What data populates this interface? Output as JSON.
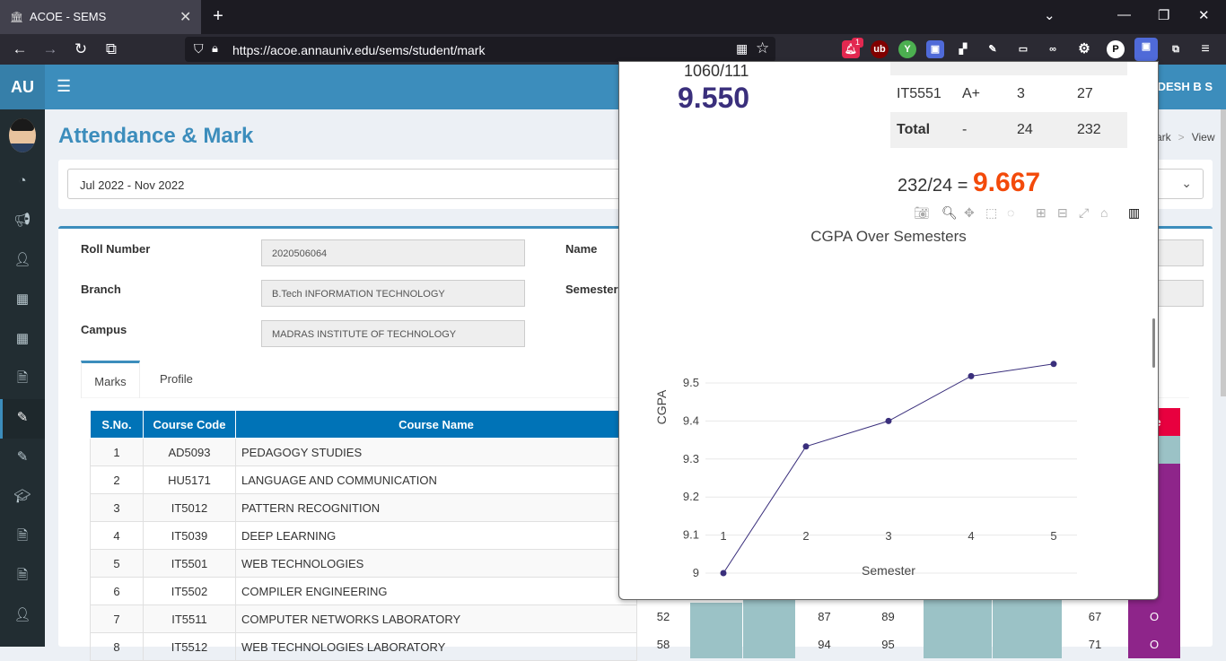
{
  "browser": {
    "tab_title": "ACOE - SEMS",
    "url": "https://acoe.annauniv.edu/sems/student/mark",
    "ext_badge": "1"
  },
  "header": {
    "logo": "AU",
    "user_name": "ADESH B S"
  },
  "page": {
    "title": "Attendance & Mark",
    "breadcrumb": [
      "ark",
      "View"
    ],
    "semester_select": "Jul 2022 - Nov 2022"
  },
  "student": {
    "roll_label": "Roll Number",
    "roll_value": "2020506064",
    "branch_label": "Branch",
    "branch_value": "B.Tech INFORMATION TECHNOLOGY",
    "campus_label": "Campus",
    "campus_value": "MADRAS INSTITUTE OF TECHNOLOGY",
    "name_label": "Name",
    "semester_label": "Semester"
  },
  "tabs": {
    "marks": "Marks",
    "profile": "Profile"
  },
  "marks_table": {
    "headers": [
      "S.No.",
      "Course Code",
      "Course Name"
    ],
    "grade_header_partial": "de",
    "rows": [
      {
        "no": "1",
        "code": "AD5093",
        "name": "PEDAGOGY STUDIES"
      },
      {
        "no": "2",
        "code": "HU5171",
        "name": "LANGUAGE AND COMMUNICATION"
      },
      {
        "no": "3",
        "code": "IT5012",
        "name": "PATTERN RECOGNITION"
      },
      {
        "no": "4",
        "code": "IT5039",
        "name": "DEEP LEARNING"
      },
      {
        "no": "5",
        "code": "IT5501",
        "name": "WEB TECHNOLOGIES"
      },
      {
        "no": "6",
        "code": "IT5502",
        "name": "COMPILER ENGINEERING"
      },
      {
        "no": "7",
        "code": "IT5511",
        "name": "COMPUTER NETWORKS LABORATORY",
        "m1": "52",
        "m2": "87",
        "m3": "89",
        "m4": "67",
        "grade": "O"
      },
      {
        "no": "8",
        "code": "IT5512",
        "name": "WEB TECHNOLOGIES LABORATORY",
        "m1": "58",
        "m2": "94",
        "m3": "95",
        "m4": "71",
        "grade": "O"
      }
    ]
  },
  "popup": {
    "fraction": "1060/111",
    "gpa": "9.550",
    "course_row": {
      "code": "IT5551",
      "grade": "A+",
      "credits": "3",
      "points": "27"
    },
    "total_row": {
      "label": "Total",
      "grade": "-",
      "credits": "24",
      "points": "232"
    },
    "cgpa_formula": "232/24 =",
    "cgpa": "9.667"
  },
  "colors": {
    "header": "#3c8dbc",
    "sidebar": "#222d32",
    "table_header": "#0073b7",
    "cgpa_value": "#f34a0a",
    "gpa_value": "#3a2f7c",
    "line": "#3a2f7c"
  },
  "chart_data": {
    "type": "line",
    "title": "CGPA Over Semesters",
    "xlabel": "Semester",
    "ylabel": "CGPA",
    "x": [
      1,
      2,
      3,
      4,
      5
    ],
    "x_ticks": [
      "1",
      "2",
      "3",
      "4",
      "5"
    ],
    "y_ticks": [
      "9",
      "9.1",
      "9.2",
      "9.3",
      "9.4",
      "9.5"
    ],
    "series": [
      {
        "values": [
          9.0,
          9.333,
          9.4,
          9.518,
          9.55
        ]
      }
    ],
    "ylim": [
      9.0,
      9.5
    ],
    "grid": true
  }
}
